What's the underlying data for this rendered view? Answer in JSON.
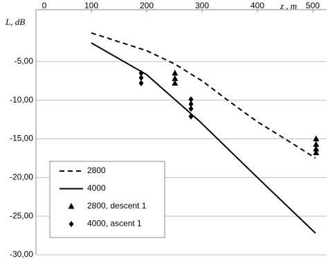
{
  "chart_data": {
    "type": "line",
    "x_label": "z , m",
    "y_label": "L, dB",
    "xlim": [
      0,
      525
    ],
    "xticks": [
      0,
      100,
      200,
      300,
      400,
      500
    ],
    "ylim": [
      -30,
      0
    ],
    "yticks": [
      {
        "value": -5,
        "label": "-5,00"
      },
      {
        "value": -10,
        "label": "-10,00"
      },
      {
        "value": -15,
        "label": "-15,00"
      },
      {
        "value": -20,
        "label": "-20,00"
      },
      {
        "value": -25,
        "label": "-25,00"
      },
      {
        "value": -30,
        "label": "-30,00"
      }
    ],
    "grid": true,
    "series": [
      {
        "name": "2800",
        "style": "dashed",
        "color": "#000000",
        "x": [
          100,
          200,
          250,
          300,
          350,
          400,
          450,
          505
        ],
        "values": [
          -1.3,
          -3.6,
          -5.3,
          -7.5,
          -10.2,
          -12.8,
          -15.0,
          -17.5
        ]
      },
      {
        "name": "4000",
        "style": "solid",
        "color": "#000000",
        "x": [
          100,
          200,
          295,
          400,
          505
        ],
        "values": [
          -2.6,
          -6.7,
          -12.7,
          -20.0,
          -27.2
        ]
      },
      {
        "name": "2800, descent 1",
        "style": "triangle",
        "color": "#000000",
        "x": [
          251,
          251,
          251,
          506,
          506,
          506,
          506
        ],
        "values": [
          -6.5,
          -7.2,
          -7.8,
          -15.0,
          -15.7,
          -16.3,
          -16.8
        ]
      },
      {
        "name": "4000, ascent 1",
        "style": "diamond",
        "color": "#000000",
        "x": [
          190,
          190,
          190,
          280,
          280,
          280,
          280
        ],
        "values": [
          -6.5,
          -7.1,
          -7.8,
          -9.9,
          -10.5,
          -11.1,
          -12.1
        ]
      }
    ]
  }
}
